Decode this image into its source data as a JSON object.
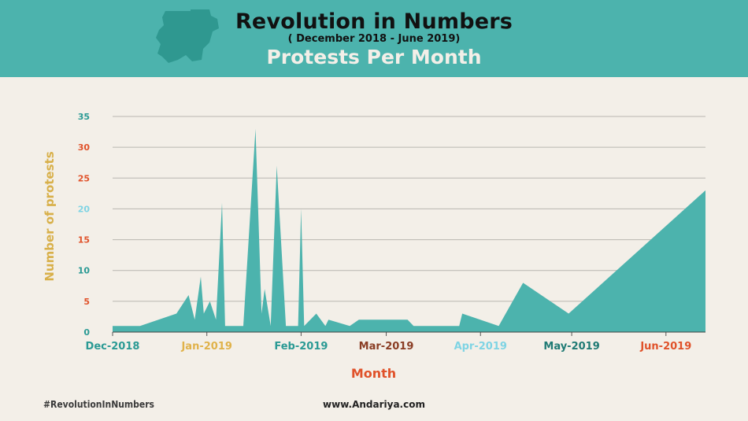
{
  "header": {
    "title": "Revolution in Numbers",
    "subtitle": "( December 2018 - June 2019)",
    "chart_title": "Protests Per Month"
  },
  "footer": {
    "hashtag": "#RevolutionInNumbers",
    "website": "www.Andariya.com"
  },
  "colors": {
    "header_bg": "#4cb3ad",
    "area_fill": "#4cb3ad",
    "background": "#f3efe8",
    "map_fill": "#2f9890",
    "xlabel": "#e0522a",
    "ylabel": "#d8b04a"
  },
  "chart_data": {
    "type": "area",
    "title": "Protests Per Month",
    "xlabel": "Month",
    "ylabel": "Number of protests",
    "ylim": [
      0,
      35
    ],
    "y_ticks": [
      0,
      5,
      10,
      15,
      20,
      25,
      30,
      35
    ],
    "y_tick_colors": [
      "#2a9a94",
      "#e0522a",
      "#2a9a94",
      "#e0522a",
      "#7fd4e4",
      "#e0522a",
      "#e0522a",
      "#2a9a94"
    ],
    "x_ticks": [
      {
        "label": "Dec-2018",
        "day": 0,
        "color": "#2a9a94"
      },
      {
        "label": "Jan-2019",
        "day": 31,
        "color": "#e0b24a"
      },
      {
        "label": "Feb-2019",
        "day": 62,
        "color": "#2a9a94"
      },
      {
        "label": "Mar-2019",
        "day": 90,
        "color": "#8a3d24"
      },
      {
        "label": "Apr-2019",
        "day": 121,
        "color": "#7fd4e4"
      },
      {
        "label": "May-2019",
        "day": 151,
        "color": "#1f7a74"
      },
      {
        "label": "Jun-2019",
        "day": 182,
        "color": "#e0522a"
      }
    ],
    "x_max_day": 195,
    "grid": true,
    "series": [
      {
        "values": [
          [
            0,
            1
          ],
          [
            9,
            1
          ],
          [
            21,
            3
          ],
          [
            25,
            6
          ],
          [
            27,
            2
          ],
          [
            29,
            9
          ],
          [
            30,
            3
          ],
          [
            32,
            5
          ],
          [
            34,
            2
          ],
          [
            36,
            21
          ],
          [
            37,
            1
          ],
          [
            43,
            1
          ],
          [
            47,
            33
          ],
          [
            49,
            3
          ],
          [
            50,
            7
          ],
          [
            52,
            1
          ],
          [
            54,
            27
          ],
          [
            57,
            1
          ],
          [
            61,
            1
          ],
          [
            62,
            20
          ],
          [
            63,
            1
          ],
          [
            67,
            3
          ],
          [
            70,
            1
          ],
          [
            71,
            2
          ],
          [
            78,
            1
          ],
          [
            81,
            2
          ],
          [
            97,
            2
          ],
          [
            99,
            1
          ],
          [
            114,
            1
          ],
          [
            115,
            3
          ],
          [
            127,
            1
          ],
          [
            135,
            8
          ],
          [
            150,
            3
          ],
          [
            195,
            23
          ]
        ]
      }
    ]
  }
}
